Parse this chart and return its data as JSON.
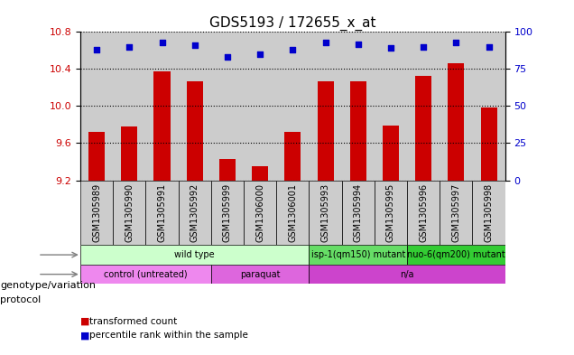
{
  "title": "GDS5193 / 172655_x_at",
  "samples": [
    "GSM1305989",
    "GSM1305990",
    "GSM1305991",
    "GSM1305992",
    "GSM1305999",
    "GSM1306000",
    "GSM1306001",
    "GSM1305993",
    "GSM1305994",
    "GSM1305995",
    "GSM1305996",
    "GSM1305997",
    "GSM1305998"
  ],
  "transformed_count": [
    9.72,
    9.78,
    10.37,
    10.27,
    9.43,
    9.35,
    9.72,
    10.27,
    10.27,
    9.79,
    10.33,
    10.46,
    9.98
  ],
  "percentile_rank": [
    88,
    90,
    93,
    91,
    83,
    85,
    88,
    93,
    92,
    89,
    90,
    93,
    90
  ],
  "ylim_left": [
    9.2,
    10.8
  ],
  "ylim_right": [
    0,
    100
  ],
  "yticks_left": [
    9.2,
    9.6,
    10.0,
    10.4,
    10.8
  ],
  "yticks_right": [
    0,
    25,
    50,
    75,
    100
  ],
  "bar_color": "#cc0000",
  "dot_color": "#0000cc",
  "sample_bg_color": "#cccccc",
  "plot_bg": "#ffffff",
  "genotype_segments": [
    {
      "label": "wild type",
      "start": 0,
      "end": 7,
      "color": "#ccffcc"
    },
    {
      "label": "isp-1(qm150) mutant",
      "start": 7,
      "end": 10,
      "color": "#66dd66"
    },
    {
      "label": "nuo-6(qm200) mutant",
      "start": 10,
      "end": 13,
      "color": "#33cc33"
    }
  ],
  "protocol_segments": [
    {
      "label": "control (untreated)",
      "start": 0,
      "end": 4,
      "color": "#ee88ee"
    },
    {
      "label": "paraquat",
      "start": 4,
      "end": 7,
      "color": "#dd66dd"
    },
    {
      "label": "n/a",
      "start": 7,
      "end": 13,
      "color": "#cc44cc"
    }
  ],
  "genotype_label": "genotype/variation",
  "protocol_label": "protocol",
  "legend1": "transformed count",
  "legend2": "percentile rank within the sample",
  "title_fontsize": 11,
  "tick_fontsize": 8,
  "label_fontsize": 7,
  "row_label_fontsize": 8
}
